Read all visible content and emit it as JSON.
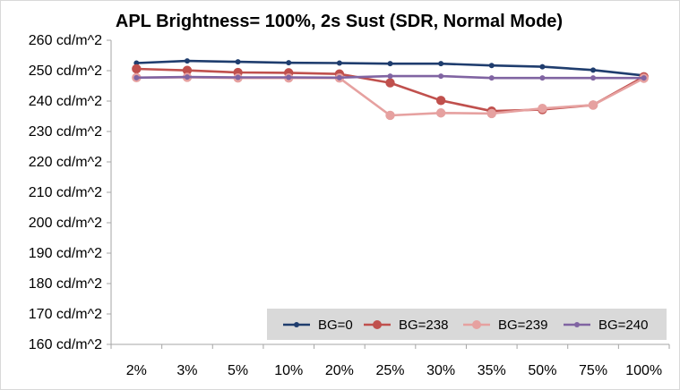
{
  "chart_data": {
    "type": "line",
    "title": "APL Brightness= 100%, 2s Sust (SDR, Normal Mode)",
    "xlabel": "",
    "ylabel": "",
    "categories": [
      "2%",
      "3%",
      "5%",
      "10%",
      "20%",
      "25%",
      "30%",
      "35%",
      "50%",
      "75%",
      "100%"
    ],
    "y_tick_labels": [
      "160 cd/m^2",
      "170 cd/m^2",
      "180 cd/m^2",
      "190 cd/m^2",
      "200 cd/m^2",
      "210 cd/m^2",
      "220 cd/m^2",
      "230 cd/m^2",
      "240 cd/m^2",
      "250 cd/m^2",
      "260 cd/m^2"
    ],
    "ylim": [
      160,
      260
    ],
    "y_step": 10,
    "grid": false,
    "legend_position": "bottom-right",
    "series": [
      {
        "name": "BG=0",
        "color": "#1f3d6e",
        "marker": "small",
        "values": [
          252.5,
          253.2,
          252.9,
          252.6,
          252.5,
          252.3,
          252.3,
          251.7,
          251.3,
          250.2,
          248.4
        ]
      },
      {
        "name": "BG=238",
        "color": "#c0504d",
        "marker": "large",
        "values": [
          250.6,
          250.1,
          249.4,
          249.3,
          248.9,
          246.0,
          240.2,
          236.7,
          237.2,
          238.7,
          248.0
        ]
      },
      {
        "name": "BG=239",
        "color": "#e6a1a0",
        "marker": "large",
        "values": [
          247.7,
          247.8,
          247.6,
          247.6,
          247.6,
          235.3,
          236.1,
          235.9,
          237.6,
          238.7,
          247.5
        ]
      },
      {
        "name": "BG=240",
        "color": "#8064a2",
        "marker": "small",
        "values": [
          247.7,
          247.9,
          247.8,
          247.8,
          247.7,
          248.2,
          248.2,
          247.6,
          247.6,
          247.6,
          247.6
        ]
      }
    ]
  }
}
